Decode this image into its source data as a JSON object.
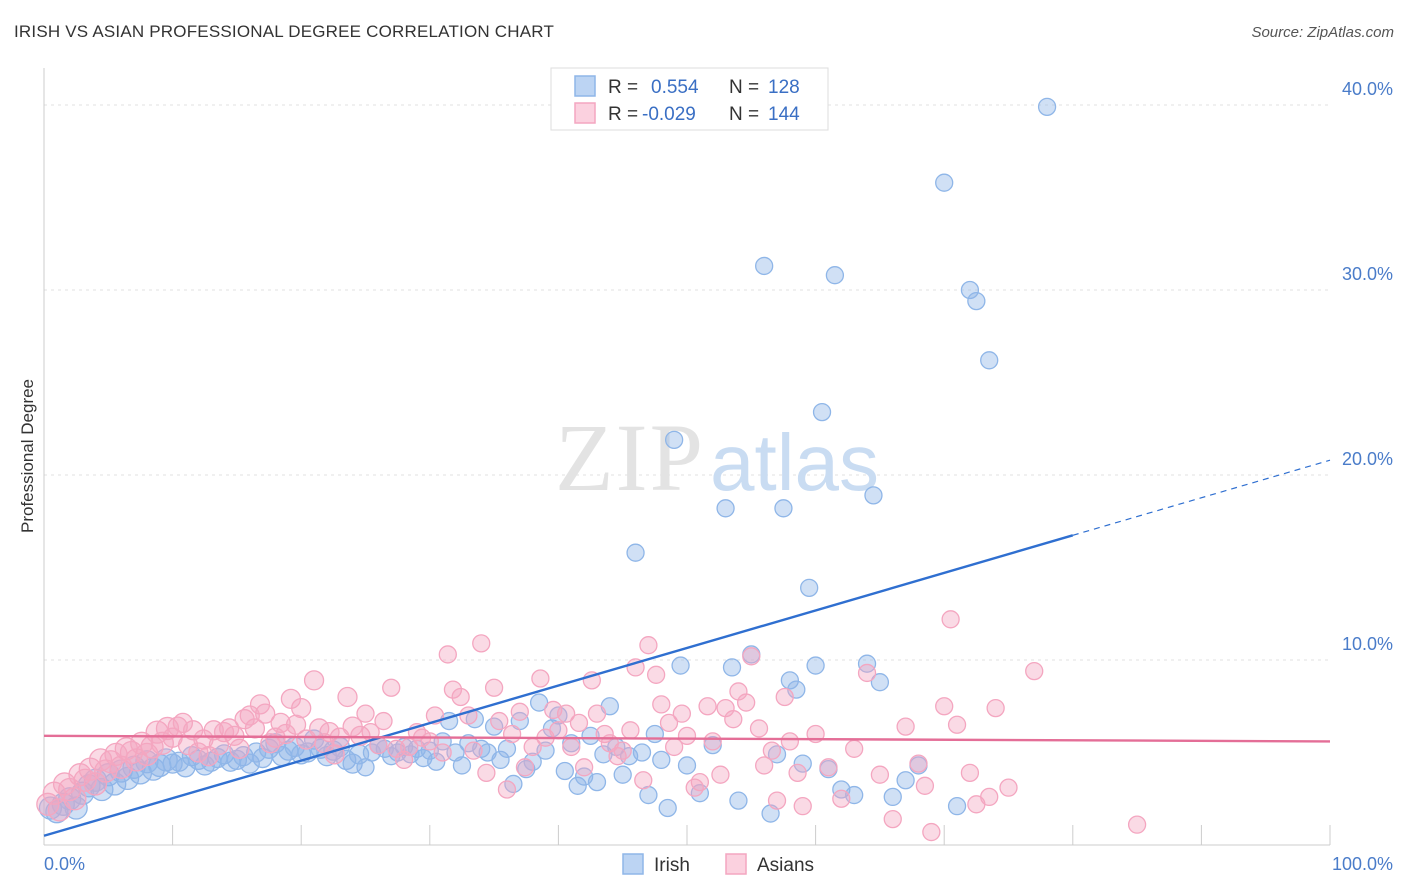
{
  "title": "IRISH VS ASIAN PROFESSIONAL DEGREE CORRELATION CHART",
  "source": "Source: ZipAtlas.com",
  "chart_data": {
    "type": "scatter",
    "title": "IRISH VS ASIAN PROFESSIONAL DEGREE CORRELATION CHART",
    "xlabel": "",
    "ylabel": "Professional Degree",
    "xlim": [
      0,
      100
    ],
    "ylim": [
      0,
      42
    ],
    "x_tick_labels": [
      "0.0%",
      "100.0%"
    ],
    "y_ticks": [
      10,
      20,
      30,
      40
    ],
    "y_tick_labels": [
      "10.0%",
      "20.0%",
      "30.0%",
      "40.0%"
    ],
    "grid": true,
    "legend_placement": "top-center",
    "watermark": "ZIPatlas",
    "series": [
      {
        "name": "Irish",
        "color": "#8fb6e8",
        "line_color": "#2f6fd0",
        "R_label": "R =",
        "R": "0.554",
        "N_label": "N =",
        "N": "128",
        "trend": {
          "x0": 0,
          "y0": 0.5,
          "x1": 100,
          "y1": 20.8,
          "solid_until": 80
        },
        "points": [
          [
            0.5,
            2.0
          ],
          [
            1,
            1.8
          ],
          [
            1.5,
            2.2
          ],
          [
            2,
            2.5
          ],
          [
            2.5,
            2.0
          ],
          [
            3,
            2.8
          ],
          [
            3.5,
            3.2
          ],
          [
            4,
            3.5
          ],
          [
            4.5,
            3.0
          ],
          [
            5,
            3.8
          ],
          [
            5.5,
            3.3
          ],
          [
            6,
            4.0
          ],
          [
            6.5,
            3.6
          ],
          [
            7,
            4.2
          ],
          [
            7.5,
            3.9
          ],
          [
            8,
            4.5
          ],
          [
            8.5,
            4.1
          ],
          [
            9,
            4.3
          ],
          [
            9.5,
            4.6
          ],
          [
            10,
            4.4
          ],
          [
            10.5,
            4.5
          ],
          [
            11,
            4.2
          ],
          [
            11.5,
            4.8
          ],
          [
            12,
            4.6
          ],
          [
            12.5,
            4.3
          ],
          [
            13,
            4.5
          ],
          [
            13.5,
            4.7
          ],
          [
            14,
            4.9
          ],
          [
            14.5,
            4.5
          ],
          [
            15,
            4.6
          ],
          [
            15.5,
            4.8
          ],
          [
            16,
            4.4
          ],
          [
            16.5,
            5.0
          ],
          [
            17,
            4.7
          ],
          [
            17.5,
            5.2
          ],
          [
            18,
            5.5
          ],
          [
            18.5,
            4.8
          ],
          [
            19,
            5.1
          ],
          [
            19.5,
            5.3
          ],
          [
            20,
            4.9
          ],
          [
            20.5,
            5.0
          ],
          [
            21,
            5.7
          ],
          [
            21.5,
            5.2
          ],
          [
            22,
            4.8
          ],
          [
            22.5,
            5.1
          ],
          [
            23,
            5.3
          ],
          [
            23.5,
            4.6
          ],
          [
            24,
            4.4
          ],
          [
            24.5,
            4.9
          ],
          [
            25,
            4.2
          ],
          [
            25.5,
            5.0
          ],
          [
            26,
            5.4
          ],
          [
            26.5,
            5.2
          ],
          [
            27,
            4.8
          ],
          [
            27.5,
            5.0
          ],
          [
            28,
            5.3
          ],
          [
            28.5,
            4.9
          ],
          [
            29,
            5.2
          ],
          [
            29.5,
            4.7
          ],
          [
            30,
            5.1
          ],
          [
            30.5,
            4.5
          ],
          [
            31,
            5.6
          ],
          [
            31.5,
            6.7
          ],
          [
            32,
            5.0
          ],
          [
            32.5,
            4.3
          ],
          [
            33,
            5.5
          ],
          [
            33.5,
            6.8
          ],
          [
            34,
            5.2
          ],
          [
            34.5,
            5.0
          ],
          [
            35,
            6.4
          ],
          [
            35.5,
            4.6
          ],
          [
            36,
            5.2
          ],
          [
            36.5,
            3.3
          ],
          [
            37,
            6.7
          ],
          [
            37.5,
            4.1
          ],
          [
            38,
            4.5
          ],
          [
            38.5,
            7.7
          ],
          [
            39,
            5.1
          ],
          [
            39.5,
            6.3
          ],
          [
            40,
            7.0
          ],
          [
            40.5,
            4.0
          ],
          [
            41,
            5.5
          ],
          [
            41.5,
            3.2
          ],
          [
            42,
            3.7
          ],
          [
            42.5,
            5.9
          ],
          [
            43,
            3.4
          ],
          [
            43.5,
            4.9
          ],
          [
            44,
            7.5
          ],
          [
            44.5,
            5.3
          ],
          [
            45,
            3.8
          ],
          [
            45.5,
            4.8
          ],
          [
            46,
            15.8
          ],
          [
            46.5,
            5.0
          ],
          [
            47,
            2.7
          ],
          [
            47.5,
            6.0
          ],
          [
            48,
            4.6
          ],
          [
            48.5,
            2.0
          ],
          [
            49,
            21.9
          ],
          [
            49.5,
            9.7
          ],
          [
            50,
            4.3
          ],
          [
            51,
            2.8
          ],
          [
            52,
            5.4
          ],
          [
            53,
            18.2
          ],
          [
            53.5,
            9.6
          ],
          [
            54,
            2.4
          ],
          [
            55,
            10.3
          ],
          [
            56,
            31.3
          ],
          [
            56.5,
            1.7
          ],
          [
            57,
            4.9
          ],
          [
            57.5,
            18.2
          ],
          [
            58,
            8.9
          ],
          [
            58.5,
            8.4
          ],
          [
            59,
            4.4
          ],
          [
            59.5,
            13.9
          ],
          [
            60,
            9.7
          ],
          [
            60.5,
            23.4
          ],
          [
            61,
            4.1
          ],
          [
            61.5,
            30.8
          ],
          [
            62,
            3.0
          ],
          [
            63,
            2.7
          ],
          [
            64,
            9.8
          ],
          [
            64.5,
            18.9
          ],
          [
            65,
            8.8
          ],
          [
            66,
            2.6
          ],
          [
            67,
            3.5
          ],
          [
            68,
            4.3
          ],
          [
            70,
            35.8
          ],
          [
            71,
            2.1
          ],
          [
            72,
            30.0
          ],
          [
            72.5,
            29.4
          ],
          [
            73.5,
            26.2
          ],
          [
            78,
            39.9
          ]
        ]
      },
      {
        "name": "Asians",
        "color": "#f4a6c0",
        "line_color": "#e46e97",
        "R_label": "R =",
        "R": "-0.029",
        "N_label": "N =",
        "N": "144",
        "trend": {
          "x0": 0,
          "y0": 5.9,
          "x1": 100,
          "y1": 5.6,
          "solid_until": 100
        },
        "points": [
          [
            0.3,
            2.2
          ],
          [
            0.8,
            2.8
          ],
          [
            1.2,
            1.9
          ],
          [
            1.6,
            3.3
          ],
          [
            2,
            3.0
          ],
          [
            2.4,
            2.5
          ],
          [
            2.8,
            3.8
          ],
          [
            3.2,
            3.5
          ],
          [
            3.6,
            4.1
          ],
          [
            4,
            3.3
          ],
          [
            4.4,
            4.6
          ],
          [
            4.8,
            4.0
          ],
          [
            5.2,
            4.5
          ],
          [
            5.6,
            4.9
          ],
          [
            6,
            4.2
          ],
          [
            6.4,
            5.2
          ],
          [
            6.8,
            5.0
          ],
          [
            7.2,
            4.6
          ],
          [
            7.6,
            5.5
          ],
          [
            8,
            4.9
          ],
          [
            8.4,
            5.3
          ],
          [
            8.8,
            6.1
          ],
          [
            9.2,
            5.5
          ],
          [
            9.6,
            6.3
          ],
          [
            10,
            5.8
          ],
          [
            10.4,
            6.4
          ],
          [
            10.8,
            6.6
          ],
          [
            11.2,
            5.4
          ],
          [
            11.6,
            6.2
          ],
          [
            12,
            5.0
          ],
          [
            12.4,
            5.7
          ],
          [
            12.8,
            4.8
          ],
          [
            13.2,
            6.2
          ],
          [
            13.6,
            5.4
          ],
          [
            14,
            6.1
          ],
          [
            14.4,
            6.3
          ],
          [
            14.8,
            5.9
          ],
          [
            15.2,
            5.2
          ],
          [
            15.6,
            6.8
          ],
          [
            16,
            7.0
          ],
          [
            16.4,
            6.3
          ],
          [
            16.8,
            7.6
          ],
          [
            17.2,
            7.1
          ],
          [
            17.6,
            5.5
          ],
          [
            18,
            5.8
          ],
          [
            18.4,
            6.6
          ],
          [
            18.8,
            6.0
          ],
          [
            19.2,
            7.9
          ],
          [
            19.6,
            6.5
          ],
          [
            20,
            7.4
          ],
          [
            20.4,
            5.7
          ],
          [
            21,
            8.9
          ],
          [
            21.4,
            6.3
          ],
          [
            21.8,
            5.5
          ],
          [
            22.2,
            6.1
          ],
          [
            22.6,
            4.9
          ],
          [
            23,
            5.8
          ],
          [
            23.6,
            8.0
          ],
          [
            24,
            6.4
          ],
          [
            24.6,
            5.9
          ],
          [
            25,
            7.1
          ],
          [
            25.4,
            6.1
          ],
          [
            26,
            5.4
          ],
          [
            26.4,
            6.7
          ],
          [
            27,
            8.5
          ],
          [
            27.4,
            5.2
          ],
          [
            28,
            4.6
          ],
          [
            28.4,
            5.3
          ],
          [
            29,
            6.1
          ],
          [
            29.4,
            5.8
          ],
          [
            30,
            5.6
          ],
          [
            30.4,
            7.0
          ],
          [
            31,
            5.0
          ],
          [
            31.4,
            10.3
          ],
          [
            31.8,
            8.4
          ],
          [
            32.4,
            8.0
          ],
          [
            33,
            7.0
          ],
          [
            33.4,
            5.1
          ],
          [
            34,
            10.9
          ],
          [
            34.4,
            3.9
          ],
          [
            35,
            8.5
          ],
          [
            35.4,
            6.7
          ],
          [
            36,
            3.0
          ],
          [
            36.4,
            6.0
          ],
          [
            37,
            7.2
          ],
          [
            37.4,
            4.2
          ],
          [
            38,
            5.3
          ],
          [
            38.6,
            9.0
          ],
          [
            39,
            5.8
          ],
          [
            39.6,
            7.3
          ],
          [
            40,
            6.2
          ],
          [
            40.6,
            7.1
          ],
          [
            41,
            5.3
          ],
          [
            41.6,
            6.6
          ],
          [
            42,
            4.2
          ],
          [
            42.6,
            8.9
          ],
          [
            43,
            7.1
          ],
          [
            43.6,
            6.0
          ],
          [
            44,
            5.5
          ],
          [
            44.6,
            4.8
          ],
          [
            45,
            5.1
          ],
          [
            45.6,
            6.2
          ],
          [
            46,
            9.6
          ],
          [
            46.6,
            3.5
          ],
          [
            47,
            10.8
          ],
          [
            47.6,
            9.2
          ],
          [
            48,
            7.6
          ],
          [
            48.6,
            6.6
          ],
          [
            49,
            5.3
          ],
          [
            49.6,
            7.1
          ],
          [
            50,
            5.9
          ],
          [
            50.6,
            3.1
          ],
          [
            51,
            3.4
          ],
          [
            51.6,
            7.5
          ],
          [
            52,
            5.6
          ],
          [
            52.6,
            3.8
          ],
          [
            53,
            7.4
          ],
          [
            53.6,
            6.8
          ],
          [
            54,
            8.3
          ],
          [
            54.6,
            7.7
          ],
          [
            55,
            10.2
          ],
          [
            55.6,
            6.3
          ],
          [
            56,
            4.3
          ],
          [
            56.6,
            5.1
          ],
          [
            57,
            2.4
          ],
          [
            57.6,
            8.0
          ],
          [
            58,
            5.6
          ],
          [
            58.6,
            3.9
          ],
          [
            59,
            2.1
          ],
          [
            60,
            6.0
          ],
          [
            61,
            4.2
          ],
          [
            62,
            2.5
          ],
          [
            63,
            5.2
          ],
          [
            64,
            9.3
          ],
          [
            65,
            3.8
          ],
          [
            66,
            1.4
          ],
          [
            67,
            6.4
          ],
          [
            68,
            4.4
          ],
          [
            69,
            0.7
          ],
          [
            70,
            7.5
          ],
          [
            71,
            6.5
          ],
          [
            72,
            3.9
          ],
          [
            73.5,
            2.6
          ],
          [
            74,
            7.4
          ],
          [
            75,
            3.1
          ],
          [
            77,
            9.4
          ],
          [
            85,
            1.1
          ],
          [
            70.5,
            12.2
          ],
          [
            68.5,
            3.2
          ],
          [
            72.5,
            2.2
          ]
        ]
      }
    ]
  }
}
